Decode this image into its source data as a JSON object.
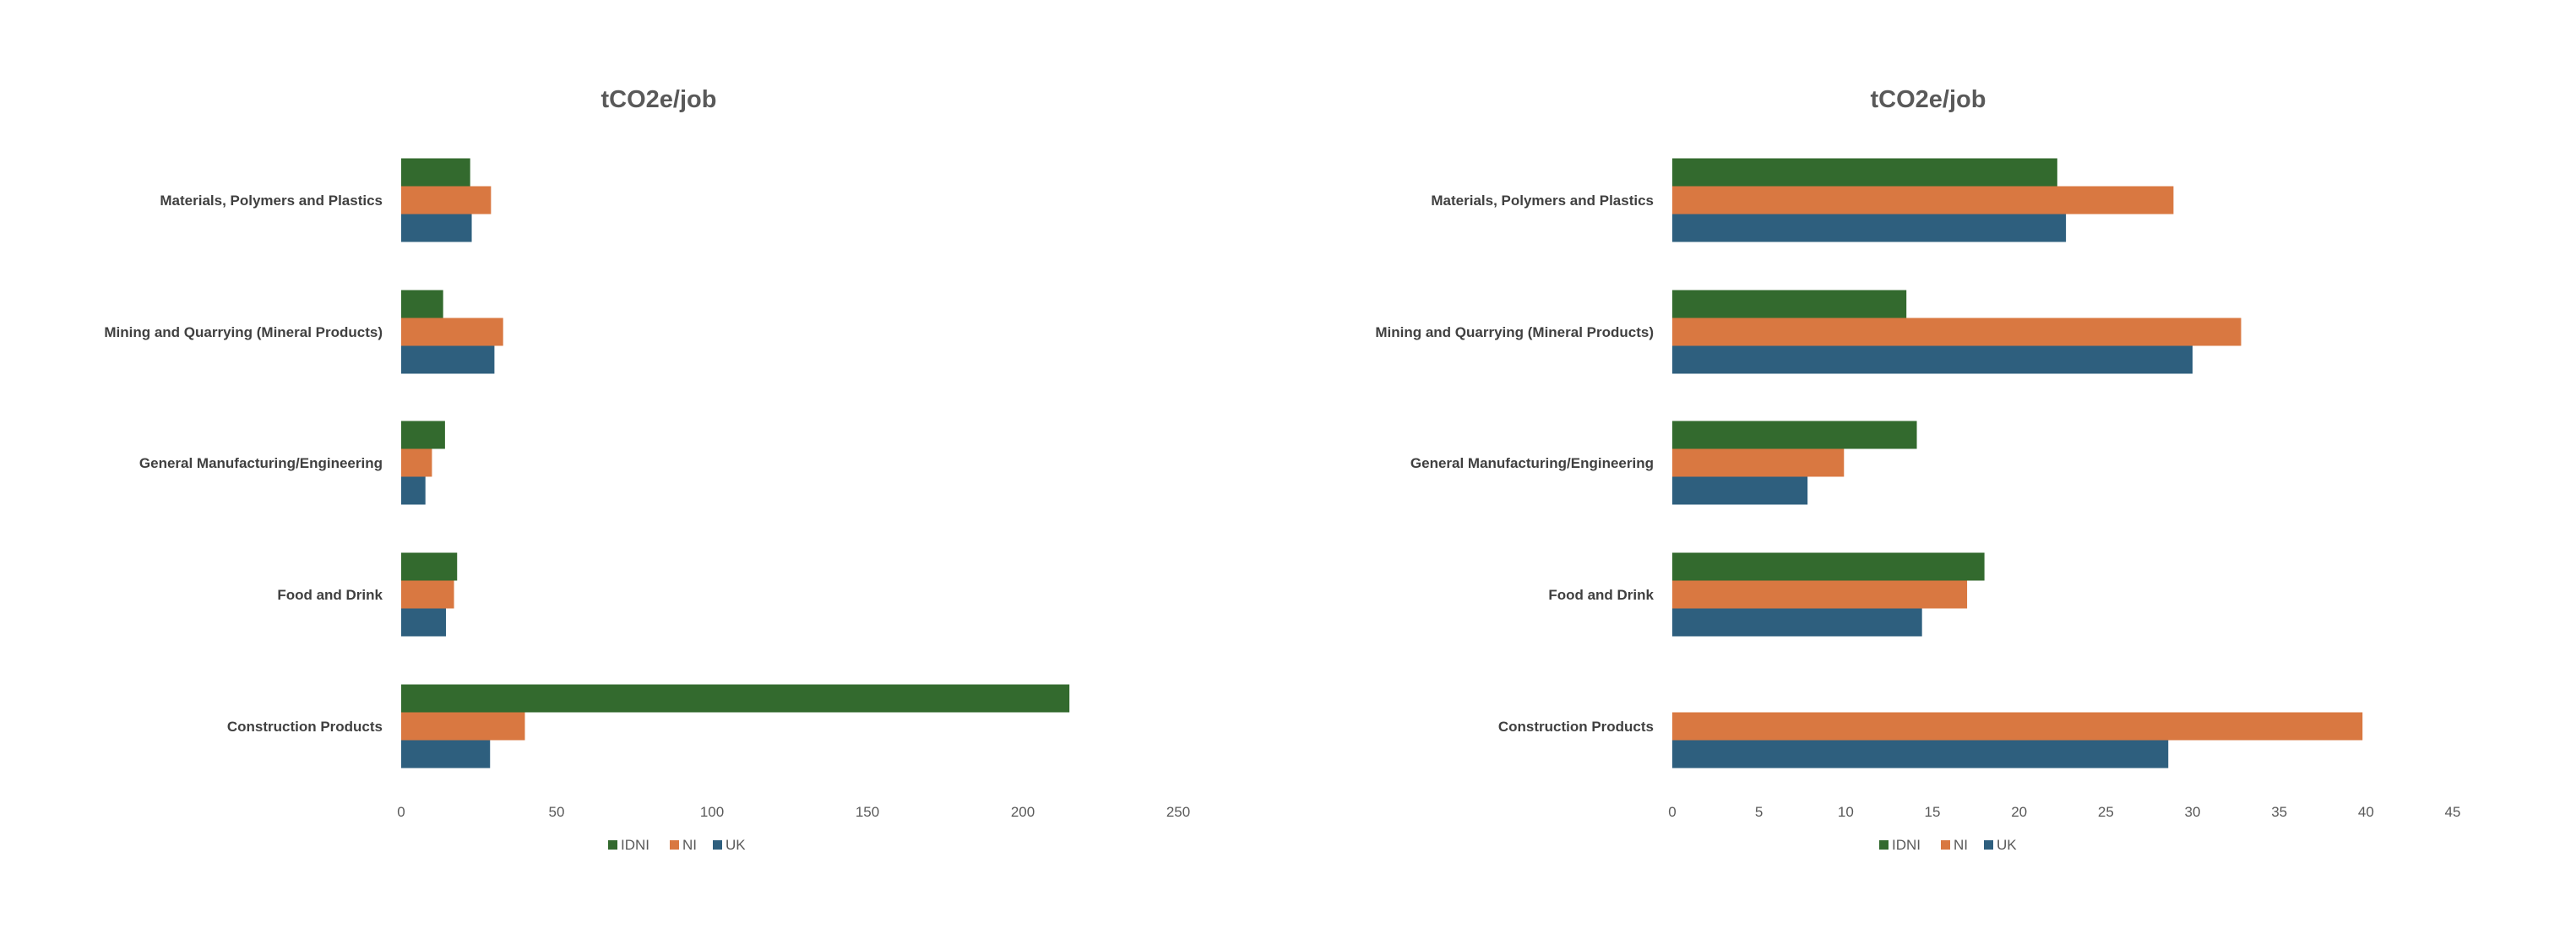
{
  "chart_data": [
    {
      "type": "bar",
      "orientation": "horizontal",
      "title": "tCO2e/job",
      "categories": [
        "Materials, Polymers and Plastics",
        "Mining and Quarrying (Mineral Products)",
        "General Manufacturing/Engineering",
        "Food and Drink",
        "Construction Products"
      ],
      "series": [
        {
          "name": "IDNI",
          "color": "#336a2e",
          "values": [
            22.2,
            13.5,
            14.1,
            18.0,
            215
          ]
        },
        {
          "name": "NI",
          "color": "#d97841",
          "values": [
            28.9,
            32.8,
            9.9,
            17.0,
            39.8
          ]
        },
        {
          "name": "UK",
          "color": "#2e5f7e",
          "values": [
            22.7,
            30.0,
            7.8,
            14.4,
            28.6
          ]
        }
      ],
      "xlim": [
        0,
        250
      ],
      "xticks": [
        "0",
        "50",
        "100",
        "150",
        "200",
        "250"
      ],
      "grid": false,
      "legend": "bottom"
    },
    {
      "type": "bar",
      "orientation": "horizontal",
      "title": "tCO2e/job",
      "categories": [
        "Materials, Polymers and Plastics",
        "Mining and Quarrying (Mineral Products)",
        "General Manufacturing/Engineering",
        "Food and Drink",
        "Construction Products"
      ],
      "series": [
        {
          "name": "IDNI",
          "color": "#336a2e",
          "values": [
            22.2,
            13.5,
            14.1,
            18.0,
            null
          ]
        },
        {
          "name": "NI",
          "color": "#d97841",
          "values": [
            28.9,
            32.8,
            9.9,
            17.0,
            39.8
          ]
        },
        {
          "name": "UK",
          "color": "#2e5f7e",
          "values": [
            22.7,
            30.0,
            7.8,
            14.4,
            28.6
          ]
        }
      ],
      "xlim": [
        0,
        45
      ],
      "xticks": [
        "0",
        "5",
        "10",
        "15",
        "20",
        "25",
        "30",
        "35",
        "40",
        "45"
      ],
      "grid": false,
      "legend": "bottom"
    }
  ]
}
